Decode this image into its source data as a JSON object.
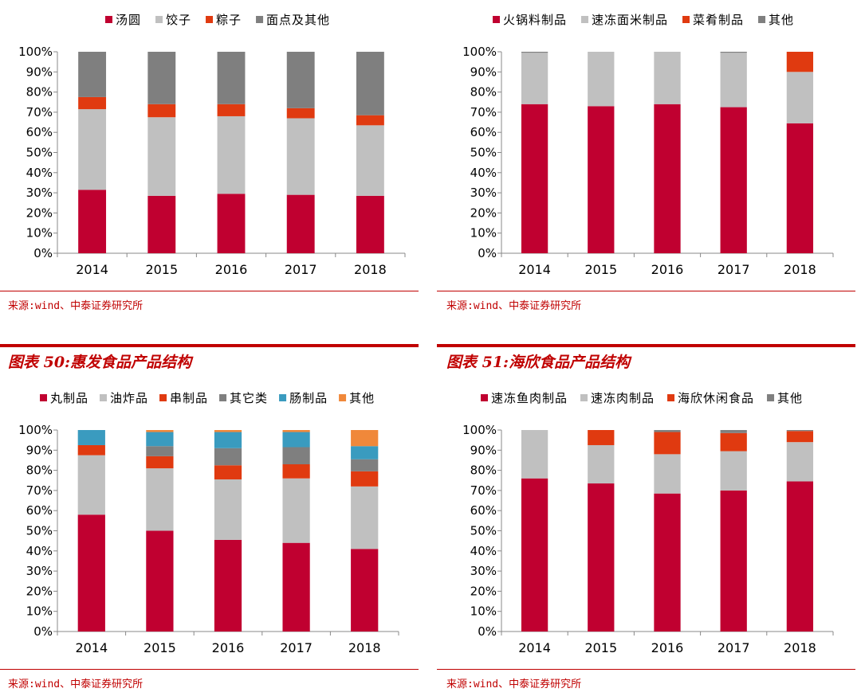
{
  "colors": {
    "accent": "#c00000"
  },
  "figure_titles": {
    "fig50": "图表 50:惠发食品产品结构",
    "fig51": "图表 51:海欣食品产品结构"
  },
  "sources": [
    "来源:wind、中泰证券研究所",
    "来源:wind、中泰证券研究所",
    "来源:wind、中泰证券研究所",
    "来源:wind、中泰证券研究所"
  ],
  "chart_data": [
    {
      "type": "bar",
      "stacked": true,
      "title": "",
      "categories": [
        "2014",
        "2015",
        "2016",
        "2017",
        "2018"
      ],
      "yticks": [
        "0%",
        "10%",
        "20%",
        "30%",
        "40%",
        "50%",
        "60%",
        "70%",
        "80%",
        "90%",
        "100%"
      ],
      "ylim": [
        0,
        100
      ],
      "grid": false,
      "legend_position": "top",
      "series": [
        {
          "name": "汤圆",
          "color": "#c00030",
          "values": [
            31.5,
            28.5,
            29.5,
            29,
            28.5
          ]
        },
        {
          "name": "饺子",
          "color": "#c0c0c0",
          "values": [
            40,
            39,
            38.5,
            38,
            35
          ]
        },
        {
          "name": "粽子",
          "color": "#e03a10",
          "values": [
            6,
            6.5,
            6,
            5,
            5
          ]
        },
        {
          "name": "面点及其他",
          "color": "#7f7f7f",
          "values": [
            22.5,
            26,
            26,
            28,
            31.5
          ]
        }
      ]
    },
    {
      "type": "bar",
      "stacked": true,
      "title": "",
      "categories": [
        "2014",
        "2015",
        "2016",
        "2017",
        "2018"
      ],
      "yticks": [
        "0%",
        "10%",
        "20%",
        "30%",
        "40%",
        "50%",
        "60%",
        "70%",
        "80%",
        "90%",
        "100%"
      ],
      "ylim": [
        0,
        100
      ],
      "grid": false,
      "legend_position": "top",
      "series": [
        {
          "name": "火锅料制品",
          "color": "#c00030",
          "values": [
            74,
            73,
            74,
            72.5,
            64.5
          ]
        },
        {
          "name": "速冻面米制品",
          "color": "#c0c0c0",
          "values": [
            25.5,
            27,
            26,
            27,
            25.5
          ]
        },
        {
          "name": "菜肴制品",
          "color": "#e03a10",
          "values": [
            0,
            0,
            0,
            0,
            10
          ]
        },
        {
          "name": "其他",
          "color": "#7f7f7f",
          "values": [
            0.5,
            0,
            0,
            0.5,
            0
          ]
        }
      ]
    },
    {
      "type": "bar",
      "stacked": true,
      "title": "",
      "categories": [
        "2014",
        "2015",
        "2016",
        "2017",
        "2018"
      ],
      "yticks": [
        "0%",
        "10%",
        "20%",
        "30%",
        "40%",
        "50%",
        "60%",
        "70%",
        "80%",
        "90%",
        "100%"
      ],
      "ylim": [
        0,
        100
      ],
      "grid": false,
      "legend_position": "top",
      "series": [
        {
          "name": "丸制品",
          "color": "#c00030",
          "values": [
            58,
            50,
            45.5,
            44,
            41
          ]
        },
        {
          "name": "油炸品",
          "color": "#c0c0c0",
          "values": [
            29.5,
            31,
            30,
            32,
            31
          ]
        },
        {
          "name": "串制品",
          "color": "#e03a10",
          "values": [
            5,
            6,
            7,
            7,
            7.5
          ]
        },
        {
          "name": "其它类",
          "color": "#7f7f7f",
          "values": [
            0,
            5,
            8.5,
            8.5,
            6
          ]
        },
        {
          "name": "肠制品",
          "color": "#3a9bbf",
          "values": [
            7.5,
            7,
            8,
            7.5,
            6.5
          ]
        },
        {
          "name": "其他",
          "color": "#f0883a",
          "values": [
            0,
            1,
            1,
            1,
            8
          ]
        }
      ]
    },
    {
      "type": "bar",
      "stacked": true,
      "title": "",
      "categories": [
        "2014",
        "2015",
        "2016",
        "2017",
        "2018"
      ],
      "yticks": [
        "0%",
        "10%",
        "20%",
        "30%",
        "40%",
        "50%",
        "60%",
        "70%",
        "80%",
        "90%",
        "100%"
      ],
      "ylim": [
        0,
        100
      ],
      "grid": false,
      "legend_position": "top",
      "series": [
        {
          "name": "速冻鱼肉制品",
          "color": "#c00030",
          "values": [
            76,
            73.5,
            68.5,
            70,
            74.5
          ]
        },
        {
          "name": "速冻肉制品",
          "color": "#c0c0c0",
          "values": [
            24,
            19,
            19.5,
            19.5,
            19.5
          ]
        },
        {
          "name": "海欣休闲食品",
          "color": "#e03a10",
          "values": [
            0,
            7.5,
            11,
            9,
            5.5
          ]
        },
        {
          "name": "其他",
          "color": "#7f7f7f",
          "values": [
            0,
            0,
            1,
            1.5,
            0.5
          ]
        }
      ]
    }
  ]
}
